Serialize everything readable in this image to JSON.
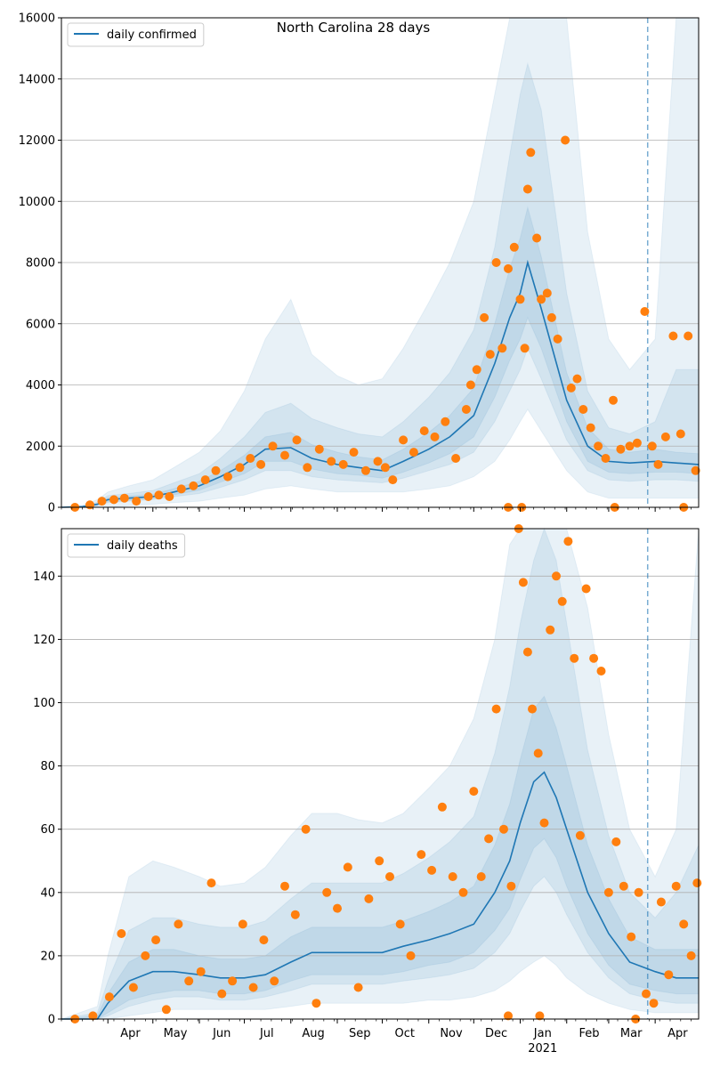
{
  "chart_data": [
    {
      "type": "line",
      "title": "North Carolina 28 days",
      "legend": {
        "label": "daily confirmed",
        "placement": "top-left"
      },
      "ylim": [
        0,
        16000
      ],
      "yticks": [
        0,
        2000,
        4000,
        6000,
        8000,
        10000,
        12000,
        14000,
        16000
      ],
      "xlim": [
        "2020-03-01",
        "2021-04-30"
      ],
      "grid": "horizontal",
      "vline": "2021-03-27",
      "series_color": "#1f77b4",
      "scatter_color": "#ff7f0e",
      "line": {
        "x": [
          "2020-03-01",
          "2020-03-15",
          "2020-03-25",
          "2020-04-01",
          "2020-04-15",
          "2020-05-01",
          "2020-05-15",
          "2020-06-01",
          "2020-06-15",
          "2020-07-01",
          "2020-07-15",
          "2020-08-01",
          "2020-08-15",
          "2020-09-01",
          "2020-09-15",
          "2020-10-01",
          "2020-10-15",
          "2020-11-01",
          "2020-11-15",
          "2020-12-01",
          "2020-12-15",
          "2020-12-25",
          "2021-01-01",
          "2021-01-06",
          "2021-01-15",
          "2021-02-01",
          "2021-02-15",
          "2021-03-01",
          "2021-03-15",
          "2021-04-01",
          "2021-04-15",
          "2021-04-30"
        ],
        "y": [
          0,
          20,
          100,
          250,
          300,
          350,
          500,
          700,
          1000,
          1400,
          1900,
          1950,
          1600,
          1400,
          1300,
          1200,
          1500,
          1900,
          2300,
          3000,
          4700,
          6200,
          7000,
          8000,
          6500,
          3500,
          2000,
          1500,
          1450,
          1500,
          1450,
          1400
        ]
      },
      "bands": [
        {
          "opacity": 0.1,
          "lower": [
            0,
            0,
            0,
            0,
            50,
            100,
            150,
            200,
            300,
            400,
            600,
            700,
            600,
            500,
            500,
            500,
            500,
            600,
            700,
            1000,
            1500,
            2200,
            2800,
            3200,
            2500,
            1200,
            500,
            300,
            300,
            300,
            300,
            300
          ],
          "upper": [
            0,
            60,
            250,
            500,
            700,
            900,
            1300,
            1800,
            2500,
            3800,
            5500,
            6800,
            5000,
            4300,
            4000,
            4200,
            5200,
            6700,
            8000,
            10000,
            13500,
            16000,
            16000,
            16000,
            16000,
            16000,
            9000,
            5500,
            4500,
            5500,
            16000,
            16000
          ]
        },
        {
          "opacity": 0.1,
          "lower": [
            0,
            5,
            50,
            150,
            200,
            250,
            350,
            450,
            650,
            900,
            1200,
            1200,
            1000,
            900,
            850,
            800,
            950,
            1200,
            1400,
            1800,
            2800,
            3800,
            4500,
            5200,
            4200,
            2200,
            1200,
            900,
            850,
            900,
            900,
            850
          ],
          "upper": [
            0,
            40,
            170,
            380,
            450,
            550,
            800,
            1100,
            1600,
            2300,
            3100,
            3400,
            2900,
            2600,
            2400,
            2300,
            2800,
            3600,
            4400,
            5800,
            8500,
            11500,
            13500,
            14500,
            13000,
            7000,
            3800,
            2600,
            2400,
            2800,
            4500,
            4500
          ]
        },
        {
          "opacity": 0.1,
          "lower": [
            0,
            10,
            70,
            190,
            230,
            290,
            410,
            560,
            820,
            1100,
            1500,
            1500,
            1250,
            1100,
            1050,
            950,
            1150,
            1450,
            1750,
            2300,
            3600,
            4800,
            5500,
            6200,
            5200,
            2800,
            1500,
            1150,
            1100,
            1150,
            1150,
            1100
          ],
          "upper": [
            0,
            30,
            130,
            310,
            370,
            420,
            610,
            850,
            1200,
            1700,
            2300,
            2450,
            2050,
            1800,
            1650,
            1550,
            1900,
            2450,
            3000,
            3900,
            6000,
            7800,
            8800,
            9800,
            8200,
            4400,
            2600,
            1900,
            1800,
            1900,
            1800,
            1750
          ]
        }
      ],
      "scatter": {
        "x": [
          "2020-03-10",
          "2020-03-20",
          "2020-03-28",
          "2020-04-05",
          "2020-04-12",
          "2020-04-20",
          "2020-04-28",
          "2020-05-05",
          "2020-05-12",
          "2020-05-20",
          "2020-05-28",
          "2020-06-05",
          "2020-06-12",
          "2020-06-20",
          "2020-06-28",
          "2020-07-05",
          "2020-07-12",
          "2020-07-20",
          "2020-07-28",
          "2020-08-05",
          "2020-08-12",
          "2020-08-20",
          "2020-08-28",
          "2020-09-05",
          "2020-09-12",
          "2020-09-20",
          "2020-09-28",
          "2020-10-03",
          "2020-10-08",
          "2020-10-15",
          "2020-10-22",
          "2020-10-29",
          "2020-11-05",
          "2020-11-12",
          "2020-11-19",
          "2020-11-26",
          "2020-11-29",
          "2020-12-03",
          "2020-12-08",
          "2020-12-12",
          "2020-12-16",
          "2020-12-20",
          "2020-12-24",
          "2020-12-28",
          "2021-01-01",
          "2021-01-04",
          "2021-01-06",
          "2021-01-08",
          "2021-01-12",
          "2021-01-15",
          "2021-01-19",
          "2021-01-22",
          "2021-01-26",
          "2021-01-31",
          "2021-02-04",
          "2021-02-08",
          "2021-02-12",
          "2021-02-17",
          "2021-02-22",
          "2021-02-27",
          "2021-03-04",
          "2021-03-09",
          "2021-03-15",
          "2021-03-20",
          "2021-03-25",
          "2021-03-30",
          "2021-04-03",
          "2021-04-08",
          "2021-04-13",
          "2021-04-18",
          "2021-04-23",
          "2021-04-28",
          "2020-12-24",
          "2021-01-02",
          "2021-03-05",
          "2021-04-20"
        ],
        "y": [
          0,
          80,
          200,
          250,
          300,
          200,
          350,
          400,
          350,
          600,
          700,
          900,
          1200,
          1000,
          1300,
          1600,
          1400,
          2000,
          1700,
          2200,
          1300,
          1900,
          1500,
          1400,
          1800,
          1200,
          1500,
          1300,
          900,
          2200,
          1800,
          2500,
          2300,
          2800,
          1600,
          3200,
          4000,
          4500,
          6200,
          5000,
          8000,
          5200,
          7800,
          8500,
          6800,
          5200,
          10400,
          11600,
          8800,
          6800,
          7000,
          6200,
          5500,
          12000,
          3900,
          4200,
          3200,
          2600,
          2000,
          1600,
          3500,
          1900,
          2000,
          2100,
          6400,
          2000,
          1400,
          2300,
          5600,
          2400,
          5600,
          1200,
          0,
          0,
          0,
          0
        ]
      }
    },
    {
      "type": "line",
      "title": "",
      "legend": {
        "label": "daily deaths",
        "placement": "top-left"
      },
      "ylim": [
        0,
        155
      ],
      "yticks": [
        0,
        20,
        40,
        60,
        80,
        100,
        120,
        140
      ],
      "xlim": [
        "2020-03-01",
        "2021-04-30"
      ],
      "grid": "horizontal",
      "vline": "2021-03-27",
      "series_color": "#1f77b4",
      "scatter_color": "#ff7f0e",
      "line": {
        "x": [
          "2020-03-01",
          "2020-03-25",
          "2020-04-01",
          "2020-04-15",
          "2020-05-01",
          "2020-05-15",
          "2020-06-01",
          "2020-06-15",
          "2020-07-01",
          "2020-07-15",
          "2020-08-01",
          "2020-08-15",
          "2020-09-01",
          "2020-09-15",
          "2020-10-01",
          "2020-10-15",
          "2020-11-01",
          "2020-11-15",
          "2020-12-01",
          "2020-12-15",
          "2020-12-25",
          "2021-01-01",
          "2021-01-10",
          "2021-01-17",
          "2021-01-25",
          "2021-02-01",
          "2021-02-15",
          "2021-03-01",
          "2021-03-15",
          "2021-04-01",
          "2021-04-15",
          "2021-04-30"
        ],
        "y": [
          0,
          0,
          5,
          12,
          15,
          15,
          14,
          13,
          13,
          14,
          18,
          21,
          21,
          21,
          21,
          23,
          25,
          27,
          30,
          40,
          50,
          62,
          75,
          78,
          70,
          60,
          40,
          27,
          18,
          15,
          13,
          13
        ]
      },
      "bands": [
        {
          "opacity": 0.1,
          "lower": [
            0,
            0,
            0,
            1,
            2,
            3,
            3,
            3,
            3,
            3,
            4,
            5,
            5,
            5,
            5,
            5,
            6,
            6,
            7,
            9,
            12,
            15,
            18,
            20,
            17,
            13,
            8,
            5,
            3,
            2,
            2,
            2
          ],
          "upper": [
            0,
            4,
            20,
            45,
            50,
            48,
            45,
            42,
            43,
            48,
            58,
            65,
            65,
            63,
            62,
            65,
            73,
            80,
            95,
            120,
            150,
            155,
            155,
            155,
            155,
            155,
            130,
            90,
            60,
            45,
            60,
            155
          ]
        },
        {
          "opacity": 0.1,
          "lower": [
            0,
            0,
            1,
            4,
            6,
            7,
            7,
            6,
            6,
            7,
            9,
            11,
            11,
            11,
            11,
            12,
            13,
            14,
            16,
            21,
            27,
            34,
            42,
            45,
            40,
            33,
            21,
            13,
            8,
            6,
            5,
            5
          ],
          "upper": [
            0,
            2,
            12,
            28,
            32,
            32,
            30,
            29,
            29,
            31,
            38,
            43,
            43,
            43,
            43,
            46,
            51,
            56,
            64,
            84,
            105,
            125,
            145,
            155,
            145,
            125,
            85,
            58,
            40,
            32,
            40,
            55
          ]
        },
        {
          "opacity": 0.1,
          "lower": [
            0,
            0,
            2,
            6,
            8,
            9,
            9,
            8,
            8,
            9,
            12,
            14,
            14,
            14,
            14,
            15,
            17,
            18,
            21,
            28,
            35,
            44,
            54,
            57,
            51,
            42,
            27,
            17,
            11,
            9,
            8,
            8
          ],
          "upper": [
            0,
            1,
            8,
            18,
            22,
            22,
            20,
            19,
            19,
            20,
            26,
            29,
            29,
            29,
            29,
            31,
            34,
            37,
            42,
            55,
            68,
            82,
            98,
            102,
            92,
            80,
            55,
            38,
            26,
            22,
            22,
            22
          ]
        }
      ],
      "scatter": {
        "x": [
          "2020-03-10",
          "2020-03-22",
          "2020-04-02",
          "2020-04-10",
          "2020-04-18",
          "2020-04-26",
          "2020-05-03",
          "2020-05-10",
          "2020-05-18",
          "2020-05-25",
          "2020-06-02",
          "2020-06-09",
          "2020-06-16",
          "2020-06-23",
          "2020-06-30",
          "2020-07-07",
          "2020-07-14",
          "2020-07-21",
          "2020-07-28",
          "2020-08-04",
          "2020-08-11",
          "2020-08-18",
          "2020-08-25",
          "2020-09-01",
          "2020-09-08",
          "2020-09-15",
          "2020-09-22",
          "2020-09-29",
          "2020-10-06",
          "2020-10-13",
          "2020-10-20",
          "2020-10-27",
          "2020-11-03",
          "2020-11-10",
          "2020-11-17",
          "2020-11-24",
          "2020-12-01",
          "2020-12-06",
          "2020-12-11",
          "2020-12-16",
          "2020-12-21",
          "2020-12-26",
          "2020-12-31",
          "2021-01-03",
          "2021-01-06",
          "2021-01-09",
          "2021-01-13",
          "2021-01-17",
          "2021-01-21",
          "2021-01-25",
          "2021-01-29",
          "2021-02-02",
          "2021-02-06",
          "2021-02-10",
          "2021-02-14",
          "2021-02-19",
          "2021-02-24",
          "2021-03-01",
          "2021-03-06",
          "2021-03-11",
          "2021-03-16",
          "2021-03-21",
          "2021-03-26",
          "2021-03-31",
          "2021-04-05",
          "2021-04-10",
          "2021-04-15",
          "2021-04-20",
          "2021-04-25",
          "2021-04-29",
          "2020-12-24",
          "2021-01-14",
          "2021-03-19"
        ],
        "y": [
          0,
          1,
          7,
          27,
          10,
          20,
          25,
          3,
          30,
          12,
          15,
          43,
          8,
          12,
          30,
          10,
          25,
          12,
          42,
          33,
          60,
          5,
          40,
          35,
          48,
          10,
          38,
          50,
          45,
          30,
          20,
          52,
          47,
          67,
          45,
          40,
          72,
          45,
          57,
          98,
          60,
          42,
          155,
          138,
          116,
          98,
          84,
          62,
          123,
          140,
          132,
          151,
          114,
          58,
          136,
          114,
          110,
          40,
          56,
          42,
          26,
          40,
          8,
          5,
          37,
          14,
          42,
          30,
          20,
          43,
          1,
          1,
          0
        ]
      }
    }
  ],
  "x_axis": {
    "months": [
      {
        "label": "Apr",
        "date": "2020-04-01"
      },
      {
        "label": "May",
        "date": "2020-05-01"
      },
      {
        "label": "Jun",
        "date": "2020-06-01"
      },
      {
        "label": "Jul",
        "date": "2020-07-01"
      },
      {
        "label": "Aug",
        "date": "2020-08-01"
      },
      {
        "label": "Sep",
        "date": "2020-09-01"
      },
      {
        "label": "Oct",
        "date": "2020-10-01"
      },
      {
        "label": "Nov",
        "date": "2020-11-01"
      },
      {
        "label": "Dec",
        "date": "2020-12-01"
      },
      {
        "label": "Jan",
        "date": "2021-01-01"
      },
      {
        "label": "Feb",
        "date": "2021-02-01"
      },
      {
        "label": "Mar",
        "date": "2021-03-01"
      },
      {
        "label": "Apr",
        "date": "2021-04-01"
      }
    ],
    "year_label": "2021"
  }
}
